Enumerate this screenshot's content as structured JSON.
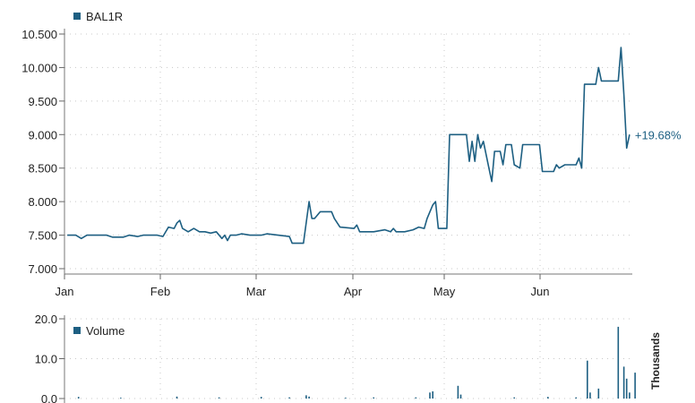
{
  "chart_data": [
    {
      "type": "line",
      "legend": "BAL1R",
      "legend_placement": "top-left",
      "color": "#1d5f82",
      "x_ticks": [
        "Jan",
        "Feb",
        "Mar",
        "Apr",
        "May",
        "Jun"
      ],
      "y_ticks": [
        "7.000",
        "7.500",
        "8.000",
        "8.500",
        "9.000",
        "9.500",
        "10.000",
        "10.500"
      ],
      "ylim": [
        7.0,
        10.5
      ],
      "grid": "dotted",
      "annotation": "+19.68%",
      "series": [
        {
          "values": [
            [
              1,
              7.5
            ],
            [
              4,
              7.5
            ],
            [
              6,
              7.45
            ],
            [
              8,
              7.5
            ],
            [
              15,
              7.5
            ],
            [
              17,
              7.47
            ],
            [
              21,
              7.47
            ],
            [
              23,
              7.5
            ],
            [
              26,
              7.48
            ],
            [
              28,
              7.5
            ],
            [
              33,
              7.5
            ],
            [
              35,
              7.48
            ],
            [
              37,
              7.62
            ],
            [
              39,
              7.6
            ],
            [
              40,
              7.68
            ],
            [
              41,
              7.72
            ],
            [
              42,
              7.6
            ],
            [
              44,
              7.55
            ],
            [
              46,
              7.6
            ],
            [
              48,
              7.55
            ],
            [
              50,
              7.55
            ],
            [
              52,
              7.53
            ],
            [
              54,
              7.55
            ],
            [
              56,
              7.45
            ],
            [
              57,
              7.5
            ],
            [
              58,
              7.42
            ],
            [
              59,
              7.5
            ],
            [
              61,
              7.5
            ],
            [
              63,
              7.52
            ],
            [
              66,
              7.5
            ],
            [
              70,
              7.5
            ],
            [
              72,
              7.52
            ],
            [
              76,
              7.5
            ],
            [
              80,
              7.48
            ],
            [
              81,
              7.38
            ],
            [
              85,
              7.38
            ],
            [
              87,
              8.0
            ],
            [
              88,
              7.75
            ],
            [
              89,
              7.75
            ],
            [
              91,
              7.85
            ],
            [
              95,
              7.85
            ],
            [
              96,
              7.75
            ],
            [
              98,
              7.62
            ],
            [
              103,
              7.6
            ],
            [
              104,
              7.65
            ],
            [
              105,
              7.55
            ],
            [
              110,
              7.55
            ],
            [
              114,
              7.58
            ],
            [
              116,
              7.55
            ],
            [
              117,
              7.6
            ],
            [
              118,
              7.55
            ],
            [
              121,
              7.55
            ],
            [
              124,
              7.58
            ],
            [
              126,
              7.62
            ],
            [
              128,
              7.6
            ],
            [
              129,
              7.75
            ],
            [
              131,
              7.95
            ],
            [
              132,
              8.0
            ],
            [
              133,
              7.6
            ],
            [
              136,
              7.6
            ],
            [
              137,
              9.0
            ],
            [
              143,
              9.0
            ],
            [
              144,
              8.6
            ],
            [
              145,
              8.9
            ],
            [
              146,
              8.6
            ],
            [
              147,
              9.0
            ],
            [
              148,
              8.8
            ],
            [
              149,
              8.9
            ],
            [
              151,
              8.5
            ],
            [
              152,
              8.3
            ],
            [
              153,
              8.75
            ],
            [
              155,
              8.75
            ],
            [
              156,
              8.55
            ],
            [
              157,
              8.85
            ],
            [
              159,
              8.85
            ],
            [
              160,
              8.55
            ],
            [
              162,
              8.5
            ],
            [
              163,
              8.85
            ],
            [
              169,
              8.85
            ],
            [
              170,
              8.45
            ],
            [
              174,
              8.45
            ],
            [
              175,
              8.55
            ],
            [
              176,
              8.5
            ],
            [
              178,
              8.55
            ],
            [
              182,
              8.55
            ],
            [
              183,
              8.65
            ],
            [
              184,
              8.5
            ],
            [
              185,
              9.75
            ],
            [
              189,
              9.75
            ],
            [
              190,
              10.0
            ],
            [
              191,
              9.8
            ],
            [
              197,
              9.8
            ],
            [
              198,
              10.3
            ],
            [
              199,
              9.6
            ],
            [
              200,
              8.8
            ],
            [
              201,
              9.0
            ]
          ]
        }
      ]
    },
    {
      "type": "bar",
      "legend": "Volume",
      "legend_placement": "top-left",
      "color": "#1d5f82",
      "y_ticks": [
        "0.0",
        "10.0",
        "20.0"
      ],
      "ylim": [
        0,
        20
      ],
      "unit_label": "Thousands",
      "values": [
        [
          5,
          0.4
        ],
        [
          20,
          0.2
        ],
        [
          40,
          0.5
        ],
        [
          55,
          0.3
        ],
        [
          70,
          0.4
        ],
        [
          80,
          0.3
        ],
        [
          86,
          0.8
        ],
        [
          87,
          0.5
        ],
        [
          100,
          0.2
        ],
        [
          110,
          0.3
        ],
        [
          125,
          0.3
        ],
        [
          130,
          1.5
        ],
        [
          131,
          1.8
        ],
        [
          140,
          3.2
        ],
        [
          141,
          1.0
        ],
        [
          160,
          0.3
        ],
        [
          172,
          0.4
        ],
        [
          182,
          0.3
        ],
        [
          186,
          9.5
        ],
        [
          187,
          1.5
        ],
        [
          190,
          2.5
        ],
        [
          197,
          18.0
        ],
        [
          199,
          8.0
        ],
        [
          200,
          5.0
        ],
        [
          201,
          1.5
        ],
        [
          203,
          6.5
        ]
      ]
    }
  ]
}
